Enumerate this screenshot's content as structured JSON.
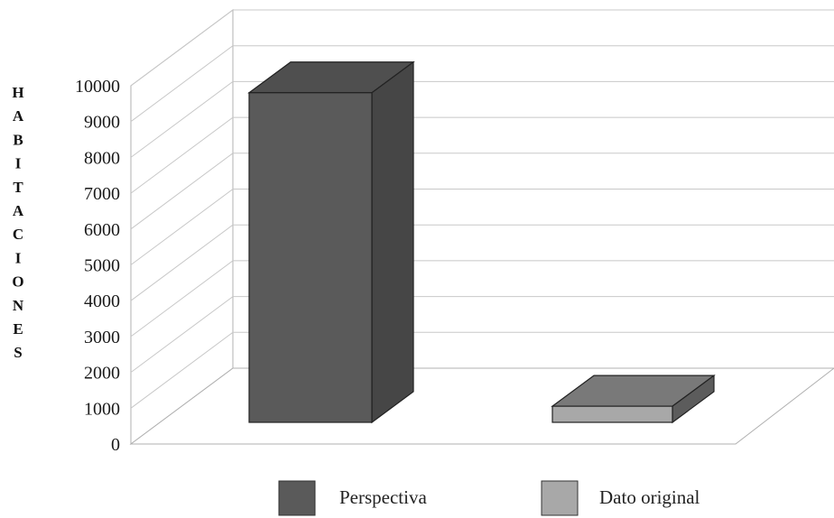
{
  "chart_data": {
    "type": "bar",
    "three_d": true,
    "categories": [
      "",
      ""
    ],
    "series": [
      {
        "name": "Perspectiva",
        "values": [
          9200,
          0
        ],
        "color": "#5a5a5a"
      },
      {
        "name": "Dato original",
        "values": [
          0,
          450
        ],
        "color": "#a8a8a8"
      }
    ],
    "title": "",
    "xlabel": "",
    "ylabel": "HABITACIONES",
    "ylim": [
      0,
      10000
    ],
    "yticks": [
      "0",
      "1000",
      "2000",
      "3000",
      "4000",
      "5000",
      "6000",
      "7000",
      "8000",
      "9000",
      "10000"
    ],
    "grid": true,
    "legend_position": "bottom"
  }
}
